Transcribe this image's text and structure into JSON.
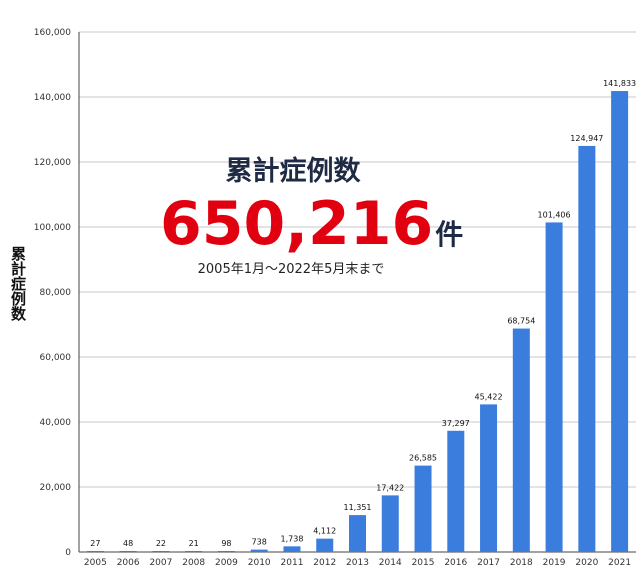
{
  "chart_data": {
    "type": "bar",
    "ylabel": "累計症例数",
    "categories": [
      "2005",
      "2006",
      "2007",
      "2008",
      "2009",
      "2010",
      "2011",
      "2012",
      "2013",
      "2014",
      "2015",
      "2016",
      "2017",
      "2018",
      "2019",
      "2020",
      "2021"
    ],
    "values": [
      27,
      48,
      22,
      21,
      98,
      738,
      1738,
      4112,
      11351,
      17422,
      26585,
      37297,
      45422,
      68754,
      101406,
      124947,
      141833
    ],
    "value_labels": [
      "27",
      "48",
      "22",
      "21",
      "98",
      "738",
      "1,738",
      "4,112",
      "11,351",
      "17,422",
      "26,585",
      "37,297",
      "45,422",
      "68,754",
      "101,406",
      "124,947",
      "141,833"
    ],
    "ylim": [
      0,
      160000
    ],
    "yticks": [
      "0",
      "20,000",
      "40,000",
      "60,000",
      "80,000",
      "100,000",
      "120,000",
      "140,000",
      "160,000"
    ],
    "grid": true,
    "bar_color": "#3b7ddd",
    "annotation": {
      "title": "累計症例数",
      "total": "650,216",
      "unit": "件",
      "period": "2005年1月～2022年5月末まで",
      "total_color": "#e00010",
      "title_color": "#1f2a44"
    }
  }
}
